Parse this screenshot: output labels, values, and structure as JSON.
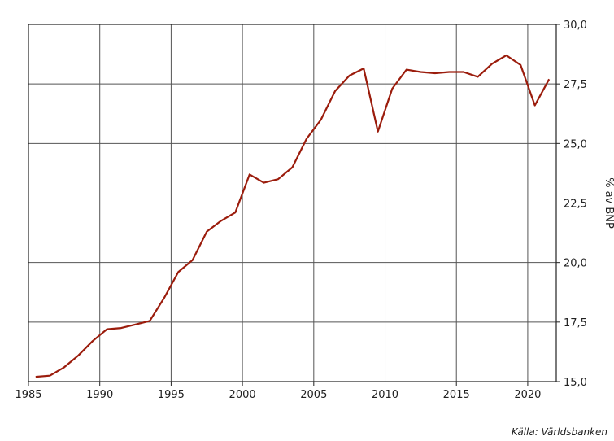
{
  "chart_data": {
    "type": "line",
    "title": "",
    "xlabel": "",
    "ylabel": "% av BNP",
    "xlim": [
      1985,
      2022
    ],
    "ylim": [
      15.0,
      30.0
    ],
    "x_ticks": [
      1985,
      1990,
      1995,
      2000,
      2005,
      2010,
      2015,
      2020
    ],
    "y_ticks": [
      15.0,
      17.5,
      20.0,
      22.5,
      25.0,
      27.5,
      30.0
    ],
    "y_tick_labels": [
      "15,0",
      "17,5",
      "20,0",
      "22,5",
      "25,0",
      "27,5",
      "30,0"
    ],
    "x_tick_labels": [
      "1985",
      "1990",
      "1995",
      "2000",
      "2005",
      "2010",
      "2015",
      "2020"
    ],
    "y_axis_side": "right",
    "grid": true,
    "line_color": "#9b1c0c",
    "series": [
      {
        "x": [
          1985.5,
          1986.5,
          1987.5,
          1988.5,
          1989.5,
          1990.5,
          1991.5,
          1992.5,
          1993.5,
          1994.5,
          1995.5,
          1996.5,
          1997.5,
          1998.5,
          1999.5,
          2000.5,
          2001.5,
          2002.5,
          2003.5,
          2004.5,
          2005.5,
          2006.5,
          2007.5,
          2008.5,
          2009.5,
          2010.5,
          2011.5,
          2012.5,
          2013.5,
          2014.5,
          2015.5,
          2016.5,
          2017.5,
          2018.5,
          2019.5,
          2020.5,
          2021.5
        ],
        "values": [
          15.2,
          15.25,
          15.6,
          16.1,
          16.7,
          17.2,
          17.25,
          17.4,
          17.55,
          18.5,
          19.6,
          20.1,
          21.3,
          21.75,
          22.1,
          23.7,
          23.35,
          23.5,
          24.0,
          25.2,
          26.0,
          27.2,
          27.85,
          28.15,
          25.5,
          27.3,
          28.1,
          28.0,
          27.95,
          28.0,
          28.0,
          27.8,
          28.35,
          28.7,
          28.3,
          26.6,
          27.7
        ]
      }
    ]
  },
  "source_note": "Källa: Världsbanken"
}
